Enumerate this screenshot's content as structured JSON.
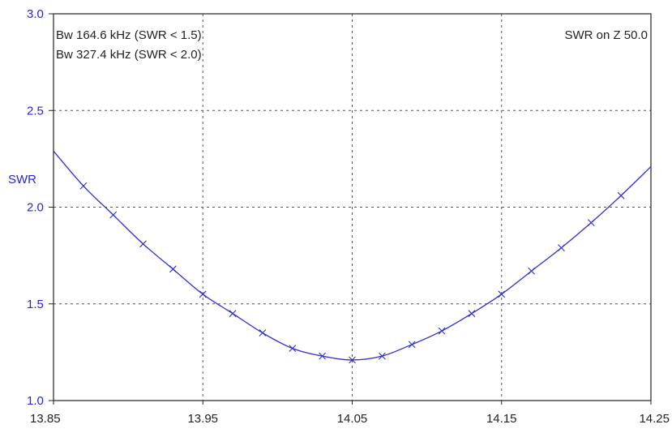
{
  "chart_data": {
    "type": "line",
    "title": "",
    "xlabel": "",
    "ylabel": "SWR",
    "xlim": [
      13.85,
      14.25
    ],
    "ylim": [
      1.0,
      3.0
    ],
    "x_ticks": [
      13.85,
      13.95,
      14.05,
      14.15,
      14.25
    ],
    "x_tick_labels": [
      "13.85",
      "13.95",
      "14.05",
      "14.15",
      "14.25"
    ],
    "y_ticks": [
      1.0,
      1.5,
      2.0,
      2.5,
      3.0
    ],
    "y_tick_labels": [
      "1.0",
      "1.5",
      "2.0",
      "2.5",
      "3.0"
    ],
    "grid": true,
    "grid_style": "dotted",
    "annotations": {
      "bandwidth_1": "Bw 164.6 kHz (SWR < 1.5)",
      "bandwidth_2": "Bw 327.4 kHz (SWR < 2.0)",
      "reference": "SWR on Z 50.0"
    },
    "series": [
      {
        "color": "#2f2fd6",
        "marker": "x",
        "x": [
          13.85,
          13.87,
          13.89,
          13.91,
          13.93,
          13.95,
          13.97,
          13.99,
          14.01,
          14.03,
          14.05,
          14.07,
          14.09,
          14.11,
          14.13,
          14.15,
          14.17,
          14.19,
          14.21,
          14.23,
          14.25
        ],
        "y": [
          2.29,
          2.11,
          1.96,
          1.81,
          1.68,
          1.55,
          1.45,
          1.35,
          1.27,
          1.23,
          1.21,
          1.23,
          1.29,
          1.36,
          1.45,
          1.55,
          1.67,
          1.79,
          1.92,
          2.06,
          2.21
        ],
        "marker_x": [
          13.87,
          13.89,
          13.91,
          13.93,
          13.95,
          13.97,
          13.99,
          14.01,
          14.03,
          14.05,
          14.07,
          14.09,
          14.11,
          14.13,
          14.15,
          14.17,
          14.19,
          14.21,
          14.23
        ]
      }
    ]
  }
}
